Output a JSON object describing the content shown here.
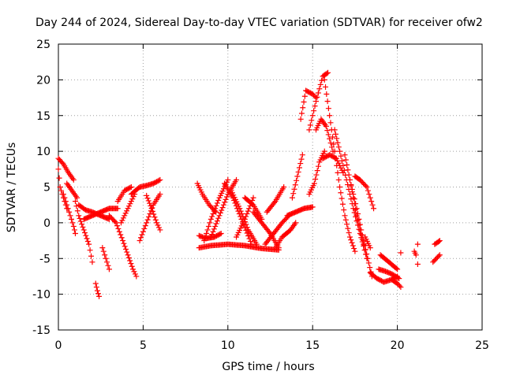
{
  "chart_data": {
    "type": "scatter",
    "title": "Day 244 of 2024, Sidereal Day-to-day VTEC variation (SDTVAR) for receiver ofw2",
    "xlabel": "GPS time / hours",
    "ylabel": "SDTVAR / TECUs",
    "xlim": [
      0,
      25
    ],
    "ylim": [
      -15,
      25
    ],
    "xticks": [
      0,
      5,
      10,
      15,
      20,
      25
    ],
    "yticks": [
      -15,
      -10,
      -5,
      0,
      5,
      10,
      15,
      20,
      25
    ],
    "xtick_labels": [
      "0",
      "5",
      "10",
      "15",
      "20",
      "25"
    ],
    "ytick_labels": [
      "-15",
      "-10",
      "-5",
      "0",
      "5",
      "10",
      "15",
      "20",
      "25"
    ],
    "grid": true,
    "marker": "+",
    "color": "#ff0000",
    "tracks": [
      {
        "x": [
          0.0,
          0.3,
          0.6,
          0.9
        ],
        "y": [
          9.0,
          8.2,
          7.0,
          6.0
        ]
      },
      {
        "x": [
          0.0,
          0.1,
          0.3,
          0.5
        ],
        "y": [
          7.5,
          5.0,
          3.5,
          2.0
        ]
      },
      {
        "x": [
          0.3,
          0.5,
          0.7,
          0.9,
          1.0
        ],
        "y": [
          4.0,
          2.5,
          1.0,
          -0.5,
          -1.5
        ]
      },
      {
        "x": [
          0.5,
          0.8,
          1.1
        ],
        "y": [
          5.5,
          4.5,
          3.5
        ]
      },
      {
        "x": [
          1.0,
          1.2,
          1.5,
          1.8,
          2.0
        ],
        "y": [
          3.0,
          1.0,
          -1.0,
          -3.0,
          -5.5
        ]
      },
      {
        "x": [
          1.2,
          1.6,
          2.0,
          2.5,
          3.0
        ],
        "y": [
          2.5,
          1.8,
          1.5,
          1.0,
          0.5
        ]
      },
      {
        "x": [
          1.5,
          2.0,
          2.5,
          3.0,
          3.5
        ],
        "y": [
          0.5,
          1.0,
          1.5,
          2.0,
          2.0
        ]
      },
      {
        "x": [
          2.2,
          2.3,
          2.4
        ],
        "y": [
          -8.5,
          -9.5,
          -10.3
        ]
      },
      {
        "x": [
          2.6,
          2.8,
          3.0
        ],
        "y": [
          -3.5,
          -5.0,
          -6.5
        ]
      },
      {
        "x": [
          3.0,
          3.4,
          3.8,
          4.1,
          4.4,
          4.6
        ],
        "y": [
          1.0,
          0.0,
          -2.5,
          -4.5,
          -6.5,
          -7.5
        ]
      },
      {
        "x": [
          3.5,
          3.9,
          4.3
        ],
        "y": [
          3.0,
          4.5,
          5.0
        ]
      },
      {
        "x": [
          3.7,
          4.1,
          4.5
        ],
        "y": [
          0.0,
          2.0,
          4.0
        ]
      },
      {
        "x": [
          4.3,
          4.8,
          5.2,
          5.6,
          6.0
        ],
        "y": [
          4.0,
          5.0,
          5.2,
          5.5,
          6.0
        ]
      },
      {
        "x": [
          4.8,
          5.2,
          5.6,
          6.0
        ],
        "y": [
          -2.5,
          0.0,
          2.5,
          4.0
        ]
      },
      {
        "x": [
          5.2,
          5.5,
          5.8,
          6.0
        ],
        "y": [
          3.8,
          2.0,
          0.0,
          -1.0
        ]
      },
      {
        "x": [
          8.2,
          8.5,
          8.9,
          9.3
        ],
        "y": [
          5.5,
          4.0,
          2.5,
          1.5
        ]
      },
      {
        "x": [
          8.3,
          8.7,
          9.2,
          9.6
        ],
        "y": [
          -1.8,
          -2.2,
          -2.0,
          -1.5
        ]
      },
      {
        "x": [
          8.3,
          9.0,
          10.0,
          11.0,
          12.0,
          13.0
        ],
        "y": [
          -3.5,
          -3.2,
          -3.0,
          -3.2,
          -3.6,
          -3.8
        ]
      },
      {
        "x": [
          8.6,
          9.0,
          9.5,
          10.0
        ],
        "y": [
          -2.5,
          0.5,
          3.5,
          6.0
        ]
      },
      {
        "x": [
          9.0,
          9.5,
          10.0,
          10.5
        ],
        "y": [
          -2.0,
          1.0,
          4.0,
          6.0
        ]
      },
      {
        "x": [
          9.8,
          10.3,
          10.8,
          11.4
        ],
        "y": [
          5.5,
          3.5,
          0.5,
          -3.0
        ]
      },
      {
        "x": [
          10.2,
          10.7,
          11.2,
          11.7
        ],
        "y": [
          4.5,
          2.0,
          -1.0,
          -3.0
        ]
      },
      {
        "x": [
          10.5,
          11.0,
          11.5
        ],
        "y": [
          -2.0,
          0.5,
          3.5
        ]
      },
      {
        "x": [
          11.0,
          11.5,
          12.0
        ],
        "y": [
          3.5,
          2.5,
          0.5
        ]
      },
      {
        "x": [
          11.5,
          12.0,
          12.5,
          13.0
        ],
        "y": [
          1.5,
          0.0,
          -1.5,
          -3.5
        ]
      },
      {
        "x": [
          12.2,
          12.7,
          13.2,
          13.6
        ],
        "y": [
          -3.0,
          -1.5,
          0.0,
          1.0
        ]
      },
      {
        "x": [
          12.8,
          13.2,
          13.7,
          14.0
        ],
        "y": [
          -3.5,
          -2.0,
          -1.0,
          0.0
        ]
      },
      {
        "x": [
          12.3,
          12.8,
          13.3
        ],
        "y": [
          1.5,
          3.0,
          5.0
        ]
      },
      {
        "x": [
          13.5,
          14.0,
          14.5,
          15.0
        ],
        "y": [
          1.0,
          1.5,
          2.0,
          2.2
        ]
      },
      {
        "x": [
          13.8,
          14.1,
          14.4
        ],
        "y": [
          3.5,
          6.5,
          9.5
        ]
      },
      {
        "x": [
          14.3,
          14.6,
          15.0,
          15.2
        ],
        "y": [
          14.5,
          18.5,
          18.0,
          17.5
        ]
      },
      {
        "x": [
          14.8,
          15.2,
          15.6,
          15.9
        ],
        "y": [
          13.0,
          17.0,
          20.5,
          21.0
        ]
      },
      {
        "x": [
          14.8,
          15.1,
          15.4,
          15.7
        ],
        "y": [
          4.0,
          5.5,
          8.5,
          10.0
        ]
      },
      {
        "x": [
          15.2,
          15.5,
          15.8,
          16.2
        ],
        "y": [
          13.0,
          14.5,
          13.5,
          10.0
        ]
      },
      {
        "x": [
          15.7,
          16.0,
          16.3,
          16.6,
          16.9,
          17.2,
          17.5
        ],
        "y": [
          20.0,
          15.0,
          10.0,
          5.0,
          1.0,
          -2.0,
          -4.0
        ]
      },
      {
        "x": [
          15.6,
          16.0,
          16.4,
          16.8
        ],
        "y": [
          9.0,
          9.5,
          9.0,
          7.0
        ]
      },
      {
        "x": [
          16.3,
          16.6,
          17.0,
          17.4,
          17.8,
          18.2
        ],
        "y": [
          13.0,
          10.0,
          6.0,
          2.0,
          -1.5,
          -5.0
        ]
      },
      {
        "x": [
          16.9,
          17.2,
          17.6,
          18.0
        ],
        "y": [
          9.5,
          6.0,
          1.0,
          -3.0
        ]
      },
      {
        "x": [
          17.2,
          17.6,
          18.0,
          18.5
        ],
        "y": [
          6.0,
          2.0,
          -2.5,
          -7.5
        ]
      },
      {
        "x": [
          17.5,
          17.8,
          18.2,
          18.6
        ],
        "y": [
          6.5,
          6.0,
          5.0,
          2.0
        ]
      },
      {
        "x": [
          18.1,
          18.4
        ],
        "y": [
          -2.0,
          -3.5
        ]
      },
      {
        "x": [
          18.4,
          18.8,
          19.2,
          19.6,
          20.0
        ],
        "y": [
          -7.0,
          -7.8,
          -8.3,
          -8.0,
          -7.5
        ]
      },
      {
        "x": [
          18.9,
          19.3,
          19.7,
          20.1
        ],
        "y": [
          -6.5,
          -6.8,
          -7.2,
          -7.8
        ]
      },
      {
        "x": [
          19.0,
          19.5,
          20.0
        ],
        "y": [
          -4.5,
          -5.5,
          -6.5
        ]
      },
      {
        "x": [
          19.7,
          20.0,
          20.2
        ],
        "y": [
          -8.0,
          -8.5,
          -9.0
        ]
      },
      {
        "x": [
          20.2
        ],
        "y": [
          -4.2
        ]
      },
      {
        "x": [
          21.0,
          21.1
        ],
        "y": [
          -4.0,
          -4.5
        ]
      },
      {
        "x": [
          21.2
        ],
        "y": [
          -3.0
        ]
      },
      {
        "x": [
          21.2
        ],
        "y": [
          -5.8
        ]
      },
      {
        "x": [
          22.1,
          22.3,
          22.5
        ],
        "y": [
          -5.5,
          -5.0,
          -4.5
        ]
      },
      {
        "x": [
          22.2,
          22.4,
          22.5
        ],
        "y": [
          -3.0,
          -2.7,
          -2.5
        ]
      }
    ]
  }
}
